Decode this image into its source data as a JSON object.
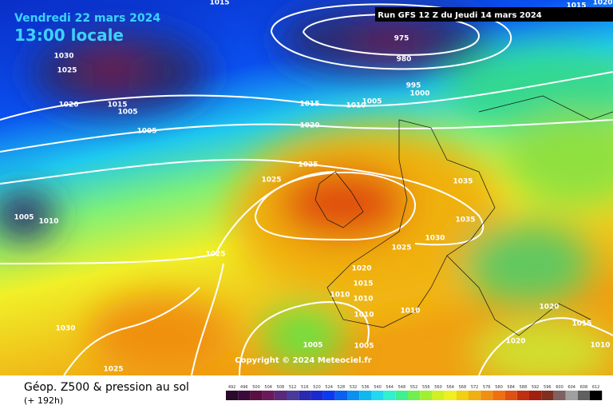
{
  "header": {
    "date": "Vendredi 22 mars 2024",
    "time": "13:00 locale",
    "run": "Run GFS 12 Z du Jeudi 14 mars 2024"
  },
  "isobars": [
    "1015",
    "1015",
    "1020",
    "1030",
    "1025",
    "975",
    "980",
    "995",
    "1000",
    "1005",
    "1010",
    "1015",
    "1015",
    "1005",
    "1020",
    "1005",
    "1020",
    "1025",
    "1025",
    "1035",
    "1035",
    "1030",
    "1025",
    "1005",
    "1010",
    "1025",
    "1020",
    "1015",
    "1010",
    "1010",
    "1010",
    "1010",
    "1020",
    "1015",
    "1020",
    "1010",
    "1030",
    "1005",
    "1005",
    "1025"
  ],
  "copyright": "Copyright © 2024 Meteociel.fr",
  "footer": {
    "title": "Géop. Z500 & pression au sol",
    "lead": "(+ 192h)"
  },
  "scale": [
    "492",
    "496",
    "500",
    "504",
    "508",
    "512",
    "516",
    "520",
    "524",
    "528",
    "532",
    "536",
    "540",
    "544",
    "548",
    "552",
    "556",
    "560",
    "564",
    "568",
    "572",
    "576",
    "580",
    "584",
    "588",
    "592",
    "596",
    "600",
    "604",
    "608",
    "612"
  ]
}
